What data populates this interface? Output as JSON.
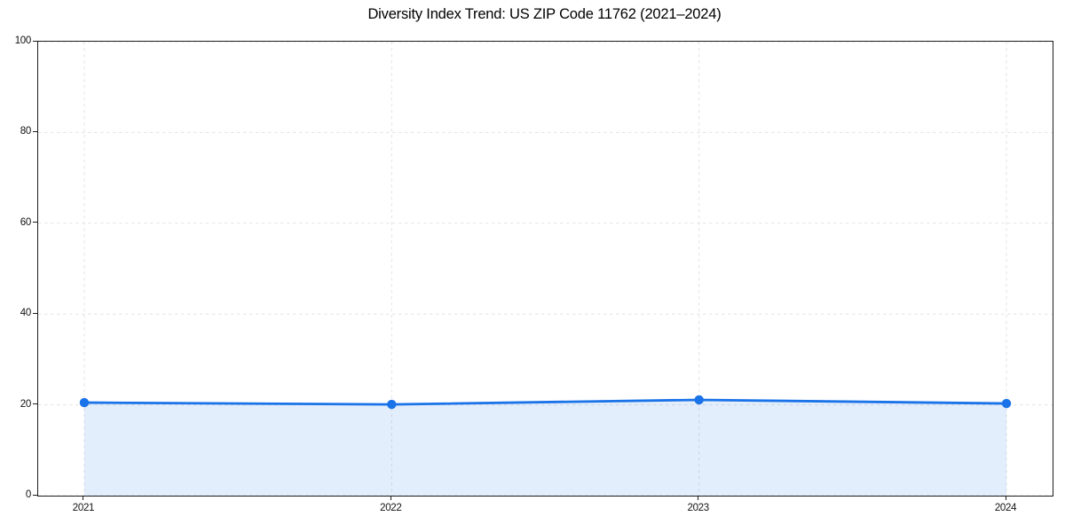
{
  "chart_data": {
    "type": "area",
    "title": "Diversity Index Trend: US ZIP Code 11762 (2021–2024)",
    "categories": [
      "2021",
      "2022",
      "2023",
      "2024"
    ],
    "values": [
      20.5,
      20.1,
      21.1,
      20.3
    ],
    "series_name": "Diversity Index",
    "xlabel": "",
    "ylabel": "",
    "ylim": [
      0,
      100
    ],
    "yticks": [
      0,
      20,
      40,
      60,
      80,
      100
    ],
    "grid": true,
    "grid_style": "dashed",
    "legend": "none",
    "marker": "circle"
  },
  "style": {
    "background": "#ffffff",
    "line_color": "#1a73e8",
    "marker_color": "#1a73e8",
    "fill_color": "rgba(26,115,232,0.12)",
    "grid_color": "#e3e3e3",
    "spine_color": "#1c1c1c",
    "tick_text_color": "#111111",
    "title_color": "#000000"
  }
}
